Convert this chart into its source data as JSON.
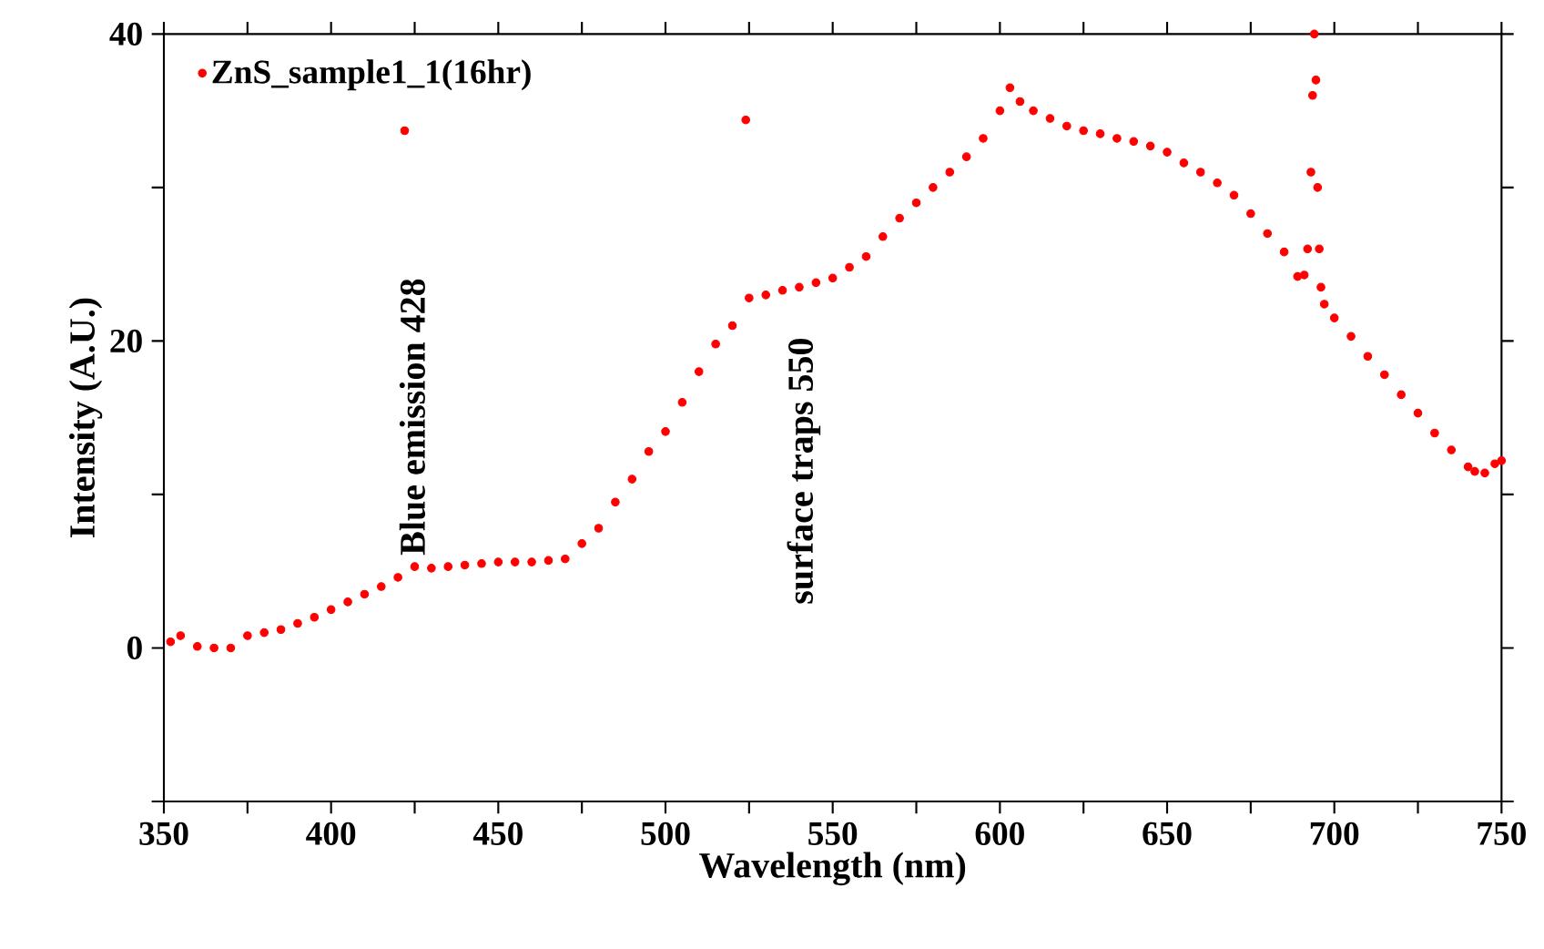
{
  "chart_data": {
    "type": "scatter",
    "xlabel": "Wavelength (nm)",
    "ylabel": "Intensity (A.U.)",
    "xlim": [
      350,
      750
    ],
    "ylim": [
      -10,
      40
    ],
    "xticks": [
      350,
      {
        "value": 375,
        "label": null
      },
      400,
      {
        "value": 425,
        "label": null
      },
      450,
      {
        "value": 475,
        "label": null
      },
      500,
      {
        "value": 525,
        "label": null
      },
      550,
      {
        "value": 575,
        "label": null
      },
      600,
      {
        "value": 625,
        "label": null
      },
      650,
      {
        "value": 675,
        "label": null
      },
      700,
      {
        "value": 725,
        "label": null
      },
      750
    ],
    "yticks": [
      {
        "value": -10,
        "label": null
      },
      0,
      {
        "value": 10,
        "label": null
      },
      20,
      {
        "value": 30,
        "label": null
      },
      40
    ],
    "marker": "circle",
    "legend": "top left",
    "grid": false,
    "annotations": [
      "Blue emission 428",
      "surface traps 550"
    ],
    "series": [
      {
        "name": "ZnS_sample1_1(16hr)",
        "color": "#ff0000",
        "x": [
          352,
          355,
          360,
          365,
          370,
          375,
          380,
          385,
          390,
          395,
          400,
          405,
          410,
          415,
          420,
          425,
          430,
          435,
          440,
          445,
          450,
          455,
          460,
          465,
          470,
          475,
          480,
          485,
          490,
          495,
          500,
          505,
          510,
          515,
          520,
          525,
          530,
          535,
          540,
          545,
          550,
          555,
          560,
          565,
          570,
          575,
          580,
          585,
          590,
          595,
          600,
          603,
          606,
          610,
          615,
          620,
          625,
          630,
          635,
          640,
          645,
          650,
          655,
          660,
          665,
          670,
          675,
          680,
          685,
          689,
          691,
          692,
          693,
          693.5,
          694,
          694.5,
          695,
          695.5,
          696,
          697,
          700,
          705,
          710,
          715,
          720,
          725,
          730,
          735,
          740,
          742,
          745,
          748,
          750,
          422,
          524
        ],
        "values": [
          0.4,
          0.8,
          0.1,
          0,
          0,
          0.8,
          1,
          1.2,
          1.6,
          2,
          2.5,
          3,
          3.5,
          4,
          4.6,
          5.3,
          5.2,
          5.3,
          5.4,
          5.5,
          5.6,
          5.6,
          5.6,
          5.7,
          5.8,
          6.8,
          7.8,
          9.5,
          11,
          12.8,
          14.1,
          16,
          18,
          19.8,
          21,
          22.8,
          23,
          23.3,
          23.5,
          23.8,
          24.1,
          24.8,
          25.5,
          26.8,
          28,
          29,
          30,
          31,
          32,
          33.2,
          35,
          36.5,
          35.6,
          35,
          34.5,
          34,
          33.7,
          33.5,
          33.2,
          33,
          32.7,
          32.3,
          31.6,
          31,
          30.3,
          29.5,
          28.3,
          27,
          25.8,
          24.2,
          24.3,
          26,
          31,
          36,
          40,
          37,
          30,
          26,
          23.5,
          22.4,
          21.5,
          20.3,
          19,
          17.8,
          16.5,
          15.3,
          14,
          12.9,
          11.8,
          11.5,
          11.4,
          12,
          12.2,
          33.7,
          34.4
        ]
      }
    ]
  }
}
